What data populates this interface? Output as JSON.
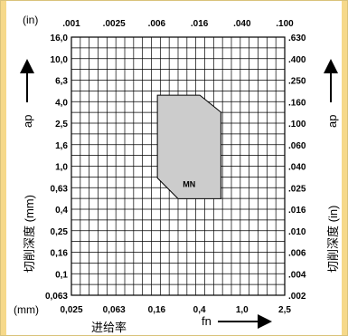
{
  "chart_data": {
    "type": "area",
    "title": "",
    "top_unit": "(in)",
    "bottom_unit": "(mm)",
    "x_top_ticks": [
      ".001",
      ".0025",
      ".006",
      ".016",
      ".040",
      ".100"
    ],
    "x_bottom_ticks": [
      "0,025",
      "0,063",
      "0,16",
      "0,4",
      "1,0",
      "2,5"
    ],
    "x_label_cn": "进给率",
    "x_label_symbol": "fn",
    "y_left_ticks": [
      "16,0",
      "10,0",
      "6,3",
      "4,0",
      "2,5",
      "1,6",
      "1,0",
      "0,63",
      "0,4",
      "0,25",
      "0,16",
      "0,1",
      "0,063"
    ],
    "y_right_ticks": [
      ".630",
      ".400",
      ".250",
      ".160",
      ".100",
      ".060",
      ".040",
      ".025",
      ".016",
      ".010",
      ".006",
      ".004",
      ".002"
    ],
    "y_label_symbol": "ap",
    "y_label_left": "切削深度 (mm)",
    "y_label_right": "切削深度 (in)",
    "x_scale": "log",
    "y_scale": "log",
    "xlim": [
      0.025,
      2.5
    ],
    "ylim": [
      0.063,
      16.0
    ],
    "grid": true,
    "region": {
      "name": "MN",
      "color": "#cccccc",
      "points": [
        [
          0.16,
          4.6
        ],
        [
          0.4,
          4.6
        ],
        [
          0.63,
          3.2
        ],
        [
          0.63,
          0.5
        ],
        [
          0.25,
          0.5
        ],
        [
          0.16,
          0.78
        ]
      ]
    }
  }
}
